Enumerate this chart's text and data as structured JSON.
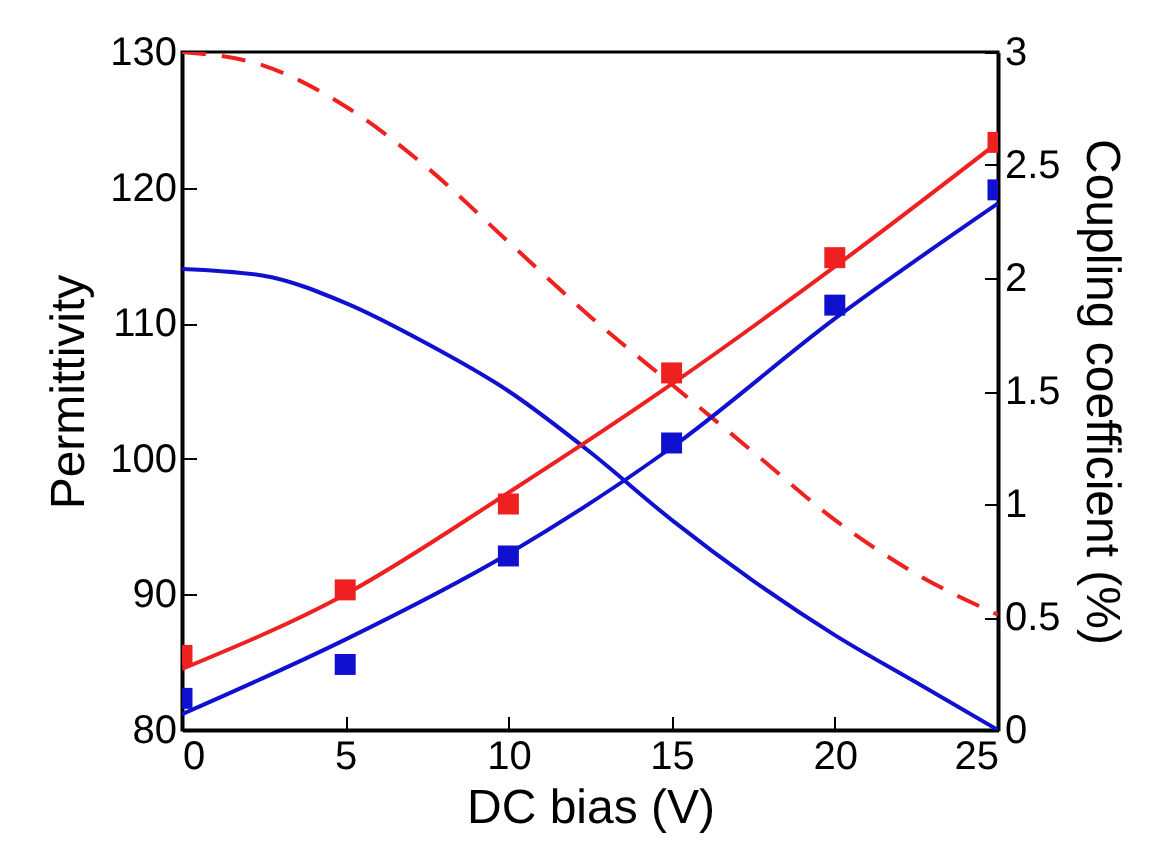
{
  "chart_data": {
    "type": "line",
    "xlabel": "DC bias (V)",
    "ylabel": "Permittivity",
    "y2label": "Coupling coefficient (%)",
    "xlim": [
      0,
      25
    ],
    "xticks": [
      0,
      5,
      10,
      15,
      20,
      25
    ],
    "ylim": [
      80,
      130
    ],
    "yticks": [
      80,
      90,
      100,
      110,
      120,
      130
    ],
    "y2lim": [
      0,
      3
    ],
    "y2ticks": [
      0,
      0.5,
      1,
      1.5,
      2,
      2.5,
      3
    ],
    "grid": false,
    "series": [
      {
        "type": "line",
        "color": "#1010d0",
        "line_style": "solid",
        "x": [
          0,
          2.5,
          5,
          7.5,
          10,
          12.5,
          15,
          17.5,
          20,
          22.5,
          25
        ],
        "values": [
          114,
          113.5,
          111.5,
          108.5,
          105,
          100.5,
          95.5,
          91,
          87,
          83.5,
          80
        ]
      },
      {
        "type": "line",
        "color": "#ee2020",
        "line_style": "dashed",
        "x": [
          0,
          2.5,
          5,
          7.5,
          10,
          12.5,
          15,
          17.5,
          20,
          22.5,
          25
        ],
        "values": [
          130,
          129,
          126,
          121.5,
          116,
          110.5,
          105.5,
          100.5,
          95.5,
          91.5,
          88.5
        ]
      },
      {
        "type": "line",
        "axis": "y2",
        "color": "#ee2020",
        "line_style": "solid",
        "x": [
          0,
          5,
          10,
          15,
          20,
          25
        ],
        "values": [
          0.27,
          0.6,
          1.05,
          1.53,
          2.05,
          2.6
        ]
      },
      {
        "type": "line",
        "axis": "y2",
        "color": "#1010d0",
        "line_style": "solid",
        "x": [
          0,
          5,
          10,
          15,
          20,
          25
        ],
        "values": [
          0.07,
          0.4,
          0.78,
          1.25,
          1.82,
          2.33
        ]
      },
      {
        "type": "scatter",
        "axis": "y2",
        "color": "#ee2020",
        "marker": "square",
        "x": [
          0,
          5,
          10,
          15,
          20,
          25
        ],
        "values": [
          0.33,
          0.62,
          1.0,
          1.58,
          2.09,
          2.6
        ]
      },
      {
        "type": "scatter",
        "axis": "y2",
        "color": "#1010d0",
        "marker": "square",
        "x": [
          0,
          5,
          10,
          15,
          20,
          25
        ],
        "values": [
          0.14,
          0.29,
          0.77,
          1.27,
          1.88,
          2.39
        ]
      }
    ]
  }
}
